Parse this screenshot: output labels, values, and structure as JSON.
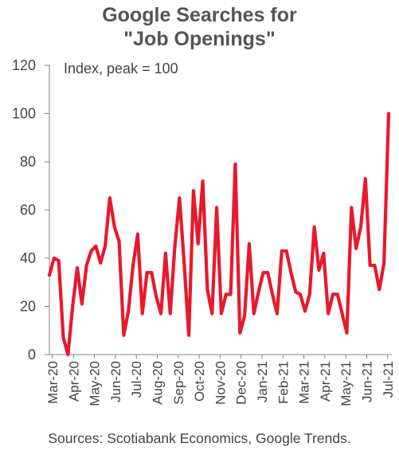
{
  "chart_data": {
    "type": "line",
    "title_lines": [
      "Google Searches for",
      "\"Job Openings\""
    ],
    "annotation": "Index, peak = 100",
    "source": "Sources: Scotiabank Economics, Google Trends.",
    "ylim": [
      0,
      120
    ],
    "yticks": [
      0,
      20,
      40,
      60,
      80,
      100,
      120
    ],
    "xtick_labels": [
      "Mar-20",
      "Apr-20",
      "May-20",
      "Jun-20",
      "Jul-20",
      "Aug-20",
      "Sep-20",
      "Oct-20",
      "Nov-20",
      "Dec-20",
      "Jan-21",
      "Feb-21",
      "Mar-21",
      "Apr-21",
      "May-21",
      "Jun-21",
      "Jul-21"
    ],
    "line_color": "#e8192c",
    "grid": false,
    "frequency": "weekly",
    "start": "Mar-20",
    "values": [
      33,
      40,
      39,
      7,
      0,
      20,
      36,
      21,
      37,
      43,
      45,
      38,
      45,
      65,
      53,
      47,
      8,
      18,
      37,
      50,
      17,
      34,
      34,
      24,
      17,
      42,
      17,
      45,
      65,
      38,
      8,
      68,
      46,
      72,
      27,
      17,
      61,
      17,
      25,
      25,
      79,
      9,
      16,
      46,
      17,
      26,
      34,
      34,
      25,
      17,
      43,
      43,
      34,
      26,
      25,
      18,
      25,
      53,
      35,
      42,
      17,
      25,
      25,
      17,
      9,
      61,
      44,
      53,
      73,
      37,
      37,
      27,
      38,
      100
    ]
  }
}
